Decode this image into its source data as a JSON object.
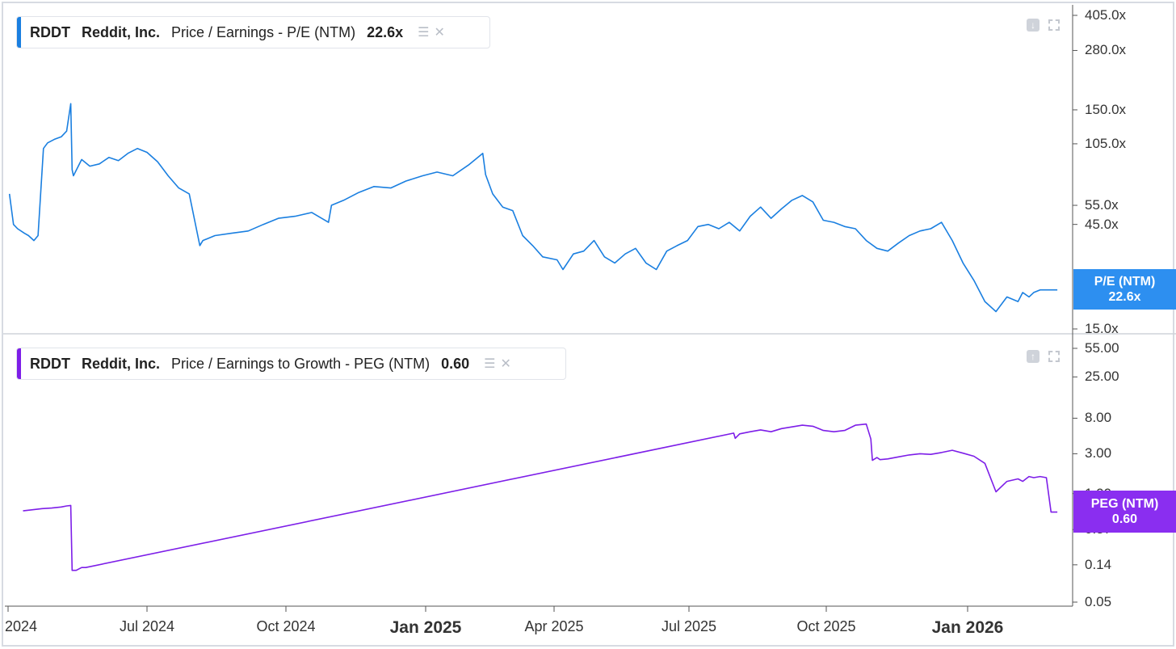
{
  "colors": {
    "pe": "#1a7fe0",
    "peg": "#7d1ee8",
    "pe_tag": "#2d8ff0",
    "peg_tag": "#8a2ef0"
  },
  "legends": {
    "pe": {
      "ticker": "RDDT",
      "company": "Reddit, Inc.",
      "metric": "Price / Earnings - P/E (NTM)",
      "value": "22.6x",
      "layers_icon": "layers-icon",
      "close_icon": "close-icon"
    },
    "peg": {
      "ticker": "RDDT",
      "company": "Reddit, Inc.",
      "metric": "Price / Earnings to Growth - PEG (NTM)",
      "value": "0.60",
      "layers_icon": "layers-icon",
      "close_icon": "close-icon"
    }
  },
  "tags": {
    "pe": {
      "label": "P/E (NTM)",
      "value": "22.6x"
    },
    "peg": {
      "label": "PEG (NTM)",
      "value": "0.60"
    }
  },
  "x_axis_labels": [
    {
      "text": "2024",
      "date": "2024-03-21",
      "major": false
    },
    {
      "text": "Jul 2024",
      "date": "2024-07-01",
      "major": false
    },
    {
      "text": "Oct 2024",
      "date": "2024-10-01",
      "major": false
    },
    {
      "text": "Jan 2025",
      "date": "2025-01-01",
      "major": true
    },
    {
      "text": "Apr 2025",
      "date": "2025-04-01",
      "major": false
    },
    {
      "text": "Jul 2025",
      "date": "2025-07-01",
      "major": false
    },
    {
      "text": "Oct 2025",
      "date": "2025-10-01",
      "major": false
    },
    {
      "text": "Jan 2026",
      "date": "2026-01-01",
      "major": true
    }
  ],
  "chart_data": [
    {
      "type": "line",
      "title": "RDDT Reddit, Inc. Price / Earnings - P/E (NTM)",
      "y_scale": "log",
      "y_ticks": [
        "405.0x",
        "280.0x",
        "150.0x",
        "105.0x",
        "55.0x",
        "45.0x",
        "15.0x"
      ],
      "y_tick_values": [
        405,
        280,
        150,
        105,
        55,
        45,
        15
      ],
      "ylim": [
        14,
        430
      ],
      "series": [
        {
          "name": "P/E (NTM)",
          "x": [
            "2024-03-22",
            "2024-03-25",
            "2024-03-28",
            "2024-04-02",
            "2024-04-05",
            "2024-04-09",
            "2024-04-12",
            "2024-04-16",
            "2024-04-19",
            "2024-04-24",
            "2024-04-29",
            "2024-05-03",
            "2024-05-06",
            "2024-05-07",
            "2024-05-08",
            "2024-05-14",
            "2024-05-20",
            "2024-05-27",
            "2024-06-03",
            "2024-06-10",
            "2024-06-17",
            "2024-06-24",
            "2024-07-01",
            "2024-07-08",
            "2024-07-15",
            "2024-07-22",
            "2024-07-29",
            "2024-08-05",
            "2024-08-07",
            "2024-08-15",
            "2024-08-26",
            "2024-09-06",
            "2024-09-16",
            "2024-09-26",
            "2024-10-07",
            "2024-10-18",
            "2024-10-29",
            "2024-10-31",
            "2024-11-08",
            "2024-11-18",
            "2024-11-28",
            "2024-12-09",
            "2024-12-19",
            "2024-12-30",
            "2025-01-09",
            "2025-01-20",
            "2025-01-31",
            "2025-02-10",
            "2025-02-12",
            "2025-02-17",
            "2025-02-24",
            "2025-03-03",
            "2025-03-10",
            "2025-03-17",
            "2025-03-24",
            "2025-04-03",
            "2025-04-07",
            "2025-04-14",
            "2025-04-21",
            "2025-04-28",
            "2025-05-05",
            "2025-05-12",
            "2025-05-19",
            "2025-05-26",
            "2025-06-02",
            "2025-06-09",
            "2025-06-16",
            "2025-06-23",
            "2025-06-30",
            "2025-07-07",
            "2025-07-14",
            "2025-07-21",
            "2025-07-28",
            "2025-08-04",
            "2025-08-11",
            "2025-08-18",
            "2025-08-25",
            "2025-09-01",
            "2025-09-08",
            "2025-09-15",
            "2025-09-22",
            "2025-09-29",
            "2025-10-06",
            "2025-10-13",
            "2025-10-20",
            "2025-10-27",
            "2025-11-03",
            "2025-11-10",
            "2025-11-17",
            "2025-11-24",
            "2025-12-01",
            "2025-12-08",
            "2025-12-15",
            "2025-12-22",
            "2025-12-29",
            "2026-01-05",
            "2026-01-12",
            "2026-01-19",
            "2026-01-26",
            "2026-02-02",
            "2026-02-05",
            "2026-02-09",
            "2026-02-12",
            "2026-02-16",
            "2026-02-20",
            "2026-02-23",
            "2026-02-27"
          ],
          "values": [
            62,
            45,
            43,
            41,
            40,
            38,
            40,
            100,
            106,
            110,
            113,
            120,
            160,
            80,
            75,
            89,
            83,
            85,
            91,
            88,
            95,
            100,
            96,
            87,
            75,
            66,
            62,
            36,
            38,
            40,
            41,
            42,
            45,
            48,
            49,
            51,
            46,
            55,
            58,
            63,
            67,
            66,
            71,
            75,
            78,
            75,
            84,
            95,
            76,
            62,
            54,
            52,
            40,
            36,
            32,
            31,
            28,
            33,
            34,
            38,
            32,
            30,
            33,
            35,
            30,
            28,
            34,
            36,
            38,
            44,
            45,
            43,
            46,
            42,
            49,
            54,
            48,
            53,
            58,
            61,
            57,
            47,
            46,
            44,
            43,
            38,
            35,
            34,
            37,
            40,
            42,
            43,
            46,
            38,
            30,
            25,
            20,
            18,
            21,
            20,
            22,
            21,
            22,
            22.6,
            22.6,
            22.6,
            22.6
          ]
        }
      ]
    },
    {
      "type": "line",
      "title": "RDDT Reddit, Inc. Price / Earnings to Growth - PEG (NTM)",
      "y_scale": "log",
      "y_ticks": [
        "55.00",
        "25.00",
        "8.00",
        "3.00",
        "1.00",
        "0.37",
        "0.14",
        "0.05"
      ],
      "y_tick_values": [
        55,
        25,
        8,
        3,
        1,
        0.37,
        0.14,
        0.05
      ],
      "ylim": [
        0.045,
        62
      ],
      "series": [
        {
          "name": "PEG (NTM)",
          "x": [
            "2024-04-01",
            "2024-04-08",
            "2024-04-15",
            "2024-04-22",
            "2024-04-29",
            "2024-05-03",
            "2024-05-06",
            "2024-05-07",
            "2024-05-10",
            "2024-05-14",
            "2024-05-17",
            "2025-07-31",
            "2025-08-01",
            "2025-08-04",
            "2025-08-11",
            "2025-08-18",
            "2025-08-25",
            "2025-09-01",
            "2025-09-08",
            "2025-09-15",
            "2025-09-22",
            "2025-09-29",
            "2025-10-06",
            "2025-10-13",
            "2025-10-20",
            "2025-10-27",
            "2025-10-30",
            "2025-10-31",
            "2025-11-03",
            "2025-11-05",
            "2025-11-10",
            "2025-11-17",
            "2025-11-24",
            "2025-12-01",
            "2025-12-08",
            "2025-12-15",
            "2025-12-22",
            "2025-12-29",
            "2026-01-05",
            "2026-01-12",
            "2026-01-19",
            "2026-01-26",
            "2026-02-02",
            "2026-02-05",
            "2026-02-09",
            "2026-02-12",
            "2026-02-16",
            "2026-02-20",
            "2026-02-23",
            "2026-02-26",
            "2026-02-27"
          ],
          "values": [
            0.62,
            0.64,
            0.66,
            0.67,
            0.69,
            0.71,
            0.72,
            0.12,
            0.12,
            0.13,
            0.13,
            5.3,
            4.6,
            5.2,
            5.5,
            5.8,
            5.5,
            6.0,
            6.3,
            6.6,
            6.4,
            5.7,
            5.5,
            5.7,
            6.6,
            6.8,
            4.5,
            2.5,
            2.7,
            2.55,
            2.6,
            2.75,
            2.9,
            3.0,
            2.95,
            3.1,
            3.3,
            3.05,
            2.8,
            2.3,
            1.05,
            1.4,
            1.5,
            1.4,
            1.6,
            1.55,
            1.6,
            1.55,
            0.6,
            0.6,
            0.6
          ]
        }
      ]
    }
  ]
}
